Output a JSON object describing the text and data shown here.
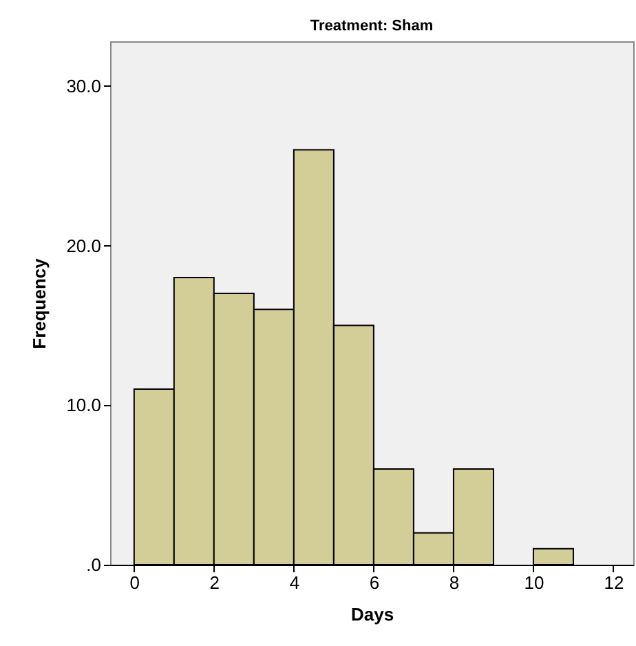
{
  "chart_data": {
    "type": "histogram",
    "title": "Treatment: Sham",
    "xlabel": "Days",
    "ylabel": "Frequency",
    "color": "#d3ce97",
    "bins": [
      0,
      1,
      2,
      3,
      4,
      5,
      6,
      7,
      8,
      9,
      10,
      11
    ],
    "values": [
      11,
      18,
      17,
      16,
      26,
      15,
      6,
      2,
      6,
      0,
      1
    ],
    "xlim": [
      -0.6,
      12.5
    ],
    "xticks": [
      0,
      2,
      4,
      6,
      8,
      10,
      12
    ],
    "ylim": [
      0,
      32.8
    ],
    "yticks": [
      {
        "value": 0,
        "label": ".0"
      },
      {
        "value": 10,
        "label": "10.0"
      },
      {
        "value": 20,
        "label": "20.0"
      },
      {
        "value": 30,
        "label": "30.0"
      }
    ],
    "grid": false
  }
}
